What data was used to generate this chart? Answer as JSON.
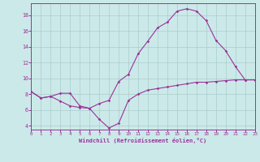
{
  "xlabel": "Windchill (Refroidissement éolien,°C)",
  "bg_color": "#cce9e9",
  "line_color": "#993399",
  "grid_color": "#aacccc",
  "x_min": 0,
  "x_max": 23,
  "y_min": 3.5,
  "y_max": 19.5,
  "yticks": [
    4,
    6,
    8,
    10,
    12,
    14,
    16,
    18
  ],
  "xticks": [
    0,
    1,
    2,
    3,
    4,
    5,
    6,
    7,
    8,
    9,
    10,
    11,
    12,
    13,
    14,
    15,
    16,
    17,
    18,
    19,
    20,
    21,
    22,
    23
  ],
  "upper_line_x": [
    0,
    1,
    2,
    3,
    4,
    5,
    6,
    7,
    8,
    9,
    10,
    11,
    12,
    13,
    14,
    15,
    16,
    17,
    18,
    19,
    20,
    21,
    22,
    23
  ],
  "upper_line_y": [
    8.3,
    7.5,
    7.7,
    8.1,
    8.1,
    6.5,
    6.2,
    6.8,
    7.2,
    9.6,
    10.5,
    13.1,
    14.7,
    16.4,
    17.1,
    18.5,
    18.8,
    18.5,
    17.3,
    14.8,
    13.5,
    11.5,
    9.8,
    9.8
  ],
  "lower_line_x": [
    0,
    1,
    2,
    3,
    4,
    5,
    6,
    7,
    8,
    9,
    10,
    11,
    12,
    13,
    14,
    15,
    16,
    17,
    18,
    19,
    20,
    21,
    22,
    23
  ],
  "lower_line_y": [
    8.3,
    7.5,
    7.7,
    7.1,
    6.5,
    6.3,
    6.2,
    4.8,
    3.7,
    4.3,
    7.2,
    8.0,
    8.5,
    8.7,
    8.9,
    9.1,
    9.3,
    9.5,
    9.5,
    9.6,
    9.7,
    9.8,
    9.8,
    9.8
  ]
}
